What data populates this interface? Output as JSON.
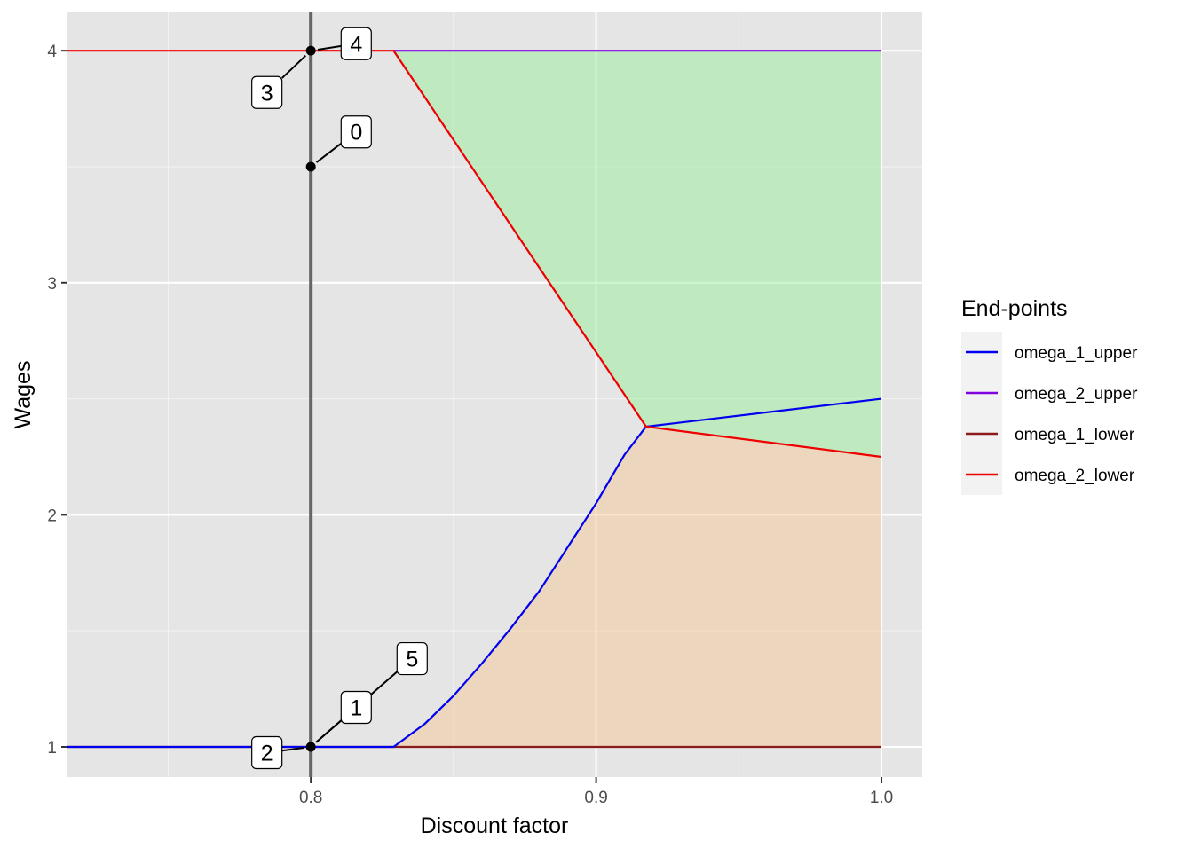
{
  "chart_data": {
    "type": "line",
    "xlabel": "Discount factor",
    "ylabel": "Wages",
    "xlim": [
      0.7147,
      1.0143
    ],
    "ylim": [
      0.87,
      4.165
    ],
    "x_ticks": [
      {
        "value": 0.8,
        "label": "0.8"
      },
      {
        "value": 0.9,
        "label": "0.9"
      },
      {
        "value": 1.0,
        "label": "1.0"
      }
    ],
    "x_minor": [
      0.75,
      0.85,
      0.95
    ],
    "y_ticks": [
      {
        "value": 1,
        "label": "1"
      },
      {
        "value": 2,
        "label": "2"
      },
      {
        "value": 3,
        "label": "3"
      },
      {
        "value": 4,
        "label": "4"
      }
    ],
    "y_minor": [
      1.5,
      2.5,
      3.5
    ],
    "grid": true,
    "background_color": "#e5e5e5",
    "legend": {
      "title": "End-points",
      "position": "right"
    },
    "series": [
      {
        "name": "omega_1_upper",
        "color": "#0000ee",
        "x": [
          0.7147,
          0.829,
          0.84,
          0.85,
          0.86,
          0.87,
          0.88,
          0.89,
          0.9,
          0.91,
          0.9175,
          1.0
        ],
        "y": [
          1.0,
          1.0,
          1.1,
          1.22,
          1.36,
          1.51,
          1.67,
          1.86,
          2.05,
          2.26,
          2.38,
          2.5
        ]
      },
      {
        "name": "omega_2_upper",
        "color": "#8000e0",
        "x": [
          0.829,
          1.0
        ],
        "y": [
          4.0,
          4.0
        ]
      },
      {
        "name": "omega_1_lower",
        "color": "#8b1a1a",
        "x": [
          0.7147,
          1.0
        ],
        "y": [
          1.0,
          1.0
        ]
      },
      {
        "name": "omega_2_lower",
        "color": "#ee0000",
        "x": [
          0.7147,
          0.829,
          0.9175,
          1.0
        ],
        "y": [
          4.0,
          4.0,
          2.38,
          2.25
        ]
      }
    ],
    "ribbons": [
      {
        "fill": "#90ee90",
        "opacity": 0.45,
        "x": [
          0.829,
          0.9175,
          1.0
        ],
        "ymin": [
          4.0,
          2.38,
          2.25
        ],
        "ymax": [
          4.0,
          4.0,
          4.0
        ]
      },
      {
        "fill": "#f4c48c",
        "opacity": 0.45,
        "x": [
          0.829,
          0.84,
          0.85,
          0.86,
          0.87,
          0.88,
          0.89,
          0.9,
          0.91,
          0.9175,
          1.0
        ],
        "ymin": [
          1.0,
          1.0,
          1.0,
          1.0,
          1.0,
          1.0,
          1.0,
          1.0,
          1.0,
          1.0,
          1.0
        ],
        "ymax": [
          1.0,
          1.1,
          1.22,
          1.36,
          1.51,
          1.67,
          1.86,
          2.05,
          2.26,
          2.38,
          2.25
        ]
      }
    ],
    "vline": {
      "x": 0.8,
      "color": "#666666"
    },
    "points": [
      {
        "x": 0.8,
        "y": 4.0
      },
      {
        "x": 0.8,
        "y": 3.5
      },
      {
        "x": 0.8,
        "y": 1.0
      }
    ],
    "annotations": [
      {
        "label": "4",
        "x": 0.8,
        "y": 4.0,
        "lx": 0.8159,
        "ly": 4.03
      },
      {
        "label": "3",
        "x": 0.8,
        "y": 4.0,
        "lx": 0.7846,
        "ly": 3.82
      },
      {
        "label": "0",
        "x": 0.8,
        "y": 3.5,
        "lx": 0.8159,
        "ly": 3.65
      },
      {
        "label": "5",
        "x": 0.8,
        "y": 1.0,
        "lx": 0.8355,
        "ly": 1.38
      },
      {
        "label": "1",
        "x": 0.8,
        "y": 1.0,
        "lx": 0.8159,
        "ly": 1.17
      },
      {
        "label": "2",
        "x": 0.8,
        "y": 1.0,
        "lx": 0.7846,
        "ly": 0.975
      }
    ]
  }
}
